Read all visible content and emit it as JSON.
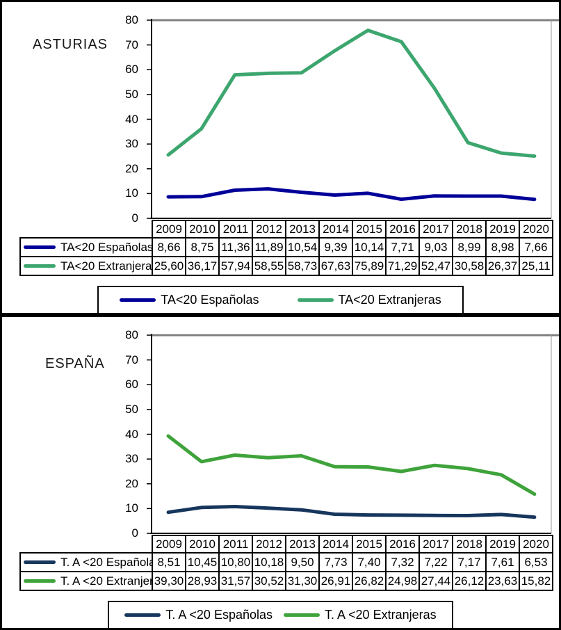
{
  "axis_color": "#808080",
  "chart_data": [
    {
      "type": "line",
      "title": "ASTURIAS",
      "categories": [
        "2009",
        "2010",
        "2011",
        "2012",
        "2013",
        "2014",
        "2015",
        "2016",
        "2017",
        "2018",
        "2019",
        "2020"
      ],
      "series": [
        {
          "name": "TA<20 Españolas",
          "color": "#000099",
          "values": [
            8.66,
            8.75,
            11.36,
            11.89,
            10.54,
            9.39,
            10.14,
            7.71,
            9.03,
            8.99,
            8.98,
            7.66
          ],
          "display_values": [
            "8,66",
            "8,75",
            "11,36",
            "11,89",
            "10,54",
            "9,39",
            "10,14",
            "7,71",
            "9,03",
            "8,99",
            "8,98",
            "7,66"
          ]
        },
        {
          "name": "TA<20 Extranjeras",
          "color": "#3CA66E",
          "values": [
            25.6,
            36.17,
            57.94,
            58.55,
            58.73,
            67.63,
            75.89,
            71.29,
            52.47,
            30.58,
            26.37,
            25.11
          ],
          "display_values": [
            "25,60",
            "36,17",
            "57,94",
            "58,55",
            "58,73",
            "67,63",
            "75,89",
            "71,29",
            "52,47",
            "30,58",
            "26,37",
            "25,11"
          ]
        }
      ],
      "ylim": [
        0,
        80
      ],
      "ytick_step": 10,
      "ytick_labels": [
        "0",
        "10",
        "20",
        "30",
        "40",
        "50",
        "60",
        "70",
        "80"
      ],
      "xlabel": "",
      "ylabel": "",
      "grid": false,
      "legend_position": "bottom"
    },
    {
      "type": "line",
      "title": "ESPAÑA",
      "categories": [
        "2009",
        "2010",
        "2011",
        "2012",
        "2013",
        "2014",
        "2015",
        "2016",
        "2017",
        "2018",
        "2019",
        "2020"
      ],
      "series": [
        {
          "name": "T. A <20 Españolas",
          "color": "#17365D",
          "values": [
            8.51,
            10.45,
            10.8,
            10.18,
            9.5,
            7.73,
            7.4,
            7.32,
            7.22,
            7.17,
            7.61,
            6.53
          ],
          "display_values": [
            "8,51",
            "10,45",
            "10,80",
            "10,18",
            "9,50",
            "7,73",
            "7,40",
            "7,32",
            "7,22",
            "7,17",
            "7,61",
            "6,53"
          ]
        },
        {
          "name": "T. A <20 Extranjeras",
          "color": "#3FA33B",
          "values": [
            39.3,
            28.93,
            31.57,
            30.52,
            31.3,
            26.91,
            26.82,
            24.98,
            27.44,
            26.12,
            23.63,
            15.82
          ],
          "display_values": [
            "39,30",
            "28,93",
            "31,57",
            "30,52",
            "31,30",
            "26,91",
            "26,82",
            "24,98",
            "27,44",
            "26,12",
            "23,63",
            "15,82"
          ]
        }
      ],
      "ylim": [
        0,
        80
      ],
      "ytick_step": 10,
      "ytick_labels": [
        "0",
        "10",
        "20",
        "30",
        "40",
        "50",
        "60",
        "70",
        "80"
      ],
      "xlabel": "",
      "ylabel": "",
      "grid": false,
      "legend_position": "bottom"
    }
  ]
}
